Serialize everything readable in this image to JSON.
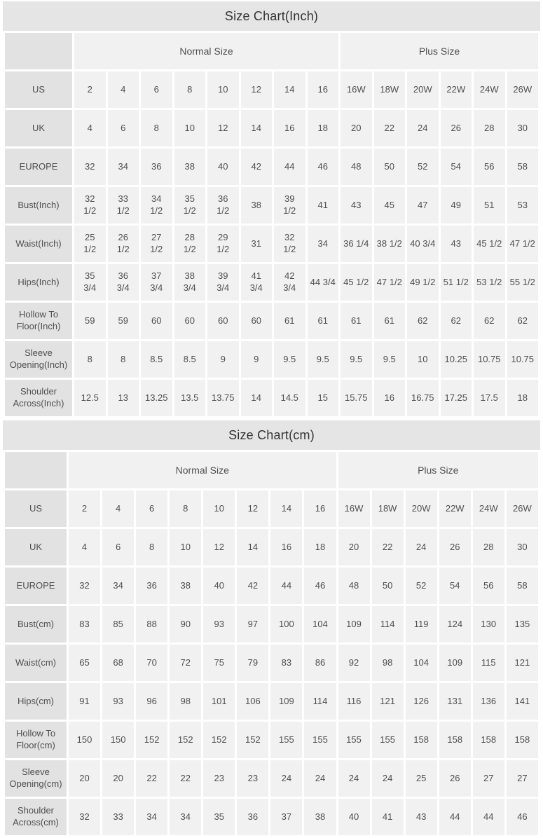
{
  "colors": {
    "title_bar_bg": "#e5e5e5",
    "row_label_bg": "#e2e2e2",
    "data_cell_bg": "#f1f1f1",
    "cell_text": "#4f4f4f",
    "title_text": "#333333",
    "gap": "#ffffff"
  },
  "chart_data": [
    {
      "type": "table",
      "title": "Size Chart(Inch)",
      "group_headers": [
        {
          "label": "",
          "span": 1
        },
        {
          "label": "Normal Size",
          "span": 8
        },
        {
          "label": "Plus Size",
          "span": 6
        }
      ],
      "rows": [
        {
          "label": "US",
          "values": [
            "2",
            "4",
            "6",
            "8",
            "10",
            "12",
            "14",
            "16",
            "16W",
            "18W",
            "20W",
            "22W",
            "24W",
            "26W"
          ]
        },
        {
          "label": "UK",
          "values": [
            "4",
            "6",
            "8",
            "10",
            "12",
            "14",
            "16",
            "18",
            "20",
            "22",
            "24",
            "26",
            "28",
            "30"
          ]
        },
        {
          "label": "EUROPE",
          "values": [
            "32",
            "34",
            "36",
            "38",
            "40",
            "42",
            "44",
            "46",
            "48",
            "50",
            "52",
            "54",
            "56",
            "58"
          ]
        },
        {
          "label": "Bust(Inch)",
          "values": [
            "32\n1/2",
            "33\n1/2",
            "34\n1/2",
            "35\n1/2",
            "36\n1/2",
            "38",
            "39\n1/2",
            "41",
            "43",
            "45",
            "47",
            "49",
            "51",
            "53"
          ]
        },
        {
          "label": "Waist(Inch)",
          "values": [
            "25\n1/2",
            "26\n1/2",
            "27\n1/2",
            "28\n1/2",
            "29\n1/2",
            "31",
            "32\n1/2",
            "34",
            "36 1/4",
            "38 1/2",
            "40 3/4",
            "43",
            "45 1/2",
            "47 1/2"
          ]
        },
        {
          "label": "Hips(Inch)",
          "values": [
            "35\n3/4",
            "36\n3/4",
            "37\n3/4",
            "38\n3/4",
            "39\n3/4",
            "41\n3/4",
            "42\n3/4",
            "44 3/4",
            "45 1/2",
            "47 1/2",
            "49 1/2",
            "51 1/2",
            "53 1/2",
            "55 1/2"
          ]
        },
        {
          "label": "Hollow To\nFloor(Inch)",
          "values": [
            "59",
            "59",
            "60",
            "60",
            "60",
            "60",
            "61",
            "61",
            "61",
            "61",
            "62",
            "62",
            "62",
            "62"
          ]
        },
        {
          "label": "Sleeve\nOpening(Inch)",
          "values": [
            "8",
            "8",
            "8.5",
            "8.5",
            "9",
            "9",
            "9.5",
            "9.5",
            "9.5",
            "9.5",
            "10",
            "10.25",
            "10.75",
            "10.75"
          ]
        },
        {
          "label": "Shoulder\nAcross(Inch)",
          "values": [
            "12.5",
            "13",
            "13.25",
            "13.5",
            "13.75",
            "14",
            "14.5",
            "15",
            "15.75",
            "16",
            "16.75",
            "17.25",
            "17.5",
            "18"
          ]
        }
      ]
    },
    {
      "type": "table",
      "title": "Size Chart(cm)",
      "group_headers": [
        {
          "label": "",
          "span": 1
        },
        {
          "label": "Normal Size",
          "span": 8
        },
        {
          "label": "Plus Size",
          "span": 6
        }
      ],
      "rows": [
        {
          "label": "US",
          "values": [
            "2",
            "4",
            "6",
            "8",
            "10",
            "12",
            "14",
            "16",
            "16W",
            "18W",
            "20W",
            "22W",
            "24W",
            "26W"
          ]
        },
        {
          "label": "UK",
          "values": [
            "4",
            "6",
            "8",
            "10",
            "12",
            "14",
            "16",
            "18",
            "20",
            "22",
            "24",
            "26",
            "28",
            "30"
          ]
        },
        {
          "label": "EUROPE",
          "values": [
            "32",
            "34",
            "36",
            "38",
            "40",
            "42",
            "44",
            "46",
            "48",
            "50",
            "52",
            "54",
            "56",
            "58"
          ]
        },
        {
          "label": "Bust(cm)",
          "values": [
            "83",
            "85",
            "88",
            "90",
            "93",
            "97",
            "100",
            "104",
            "109",
            "114",
            "119",
            "124",
            "130",
            "135"
          ]
        },
        {
          "label": "Waist(cm)",
          "values": [
            "65",
            "68",
            "70",
            "72",
            "75",
            "79",
            "83",
            "86",
            "92",
            "98",
            "104",
            "109",
            "115",
            "121"
          ]
        },
        {
          "label": "Hips(cm)",
          "values": [
            "91",
            "93",
            "96",
            "98",
            "101",
            "106",
            "109",
            "114",
            "116",
            "121",
            "126",
            "131",
            "136",
            "141"
          ]
        },
        {
          "label": "Hollow To\nFloor(cm)",
          "values": [
            "150",
            "150",
            "152",
            "152",
            "152",
            "152",
            "155",
            "155",
            "155",
            "155",
            "158",
            "158",
            "158",
            "158"
          ]
        },
        {
          "label": "Sleeve\nOpening(cm)",
          "values": [
            "20",
            "20",
            "22",
            "22",
            "23",
            "23",
            "24",
            "24",
            "24",
            "24",
            "25",
            "26",
            "27",
            "27"
          ]
        },
        {
          "label": "Shoulder\nAcross(cm)",
          "values": [
            "32",
            "33",
            "34",
            "34",
            "35",
            "36",
            "37",
            "38",
            "40",
            "41",
            "43",
            "44",
            "44",
            "46"
          ]
        }
      ]
    }
  ]
}
